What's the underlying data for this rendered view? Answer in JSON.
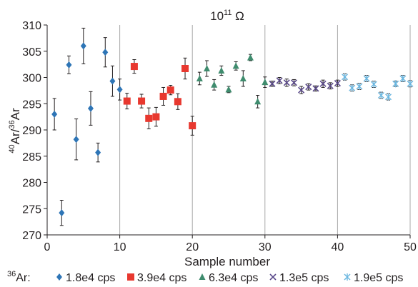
{
  "chart_data": {
    "type": "scatter",
    "title": {
      "sup": "11",
      "base": "10",
      "unit": " Ω"
    },
    "xlabel": "Sample number",
    "ylabel": {
      "sup1": "40",
      "mid": "Ar/",
      "sup2": "36",
      "tail": "Ar"
    },
    "xlim": [
      0,
      50
    ],
    "ylim": [
      270,
      310
    ],
    "xticks": [
      0,
      10,
      20,
      30,
      40,
      50
    ],
    "yticks": [
      270,
      275,
      280,
      285,
      290,
      295,
      300,
      305,
      310
    ],
    "grid": "vertical",
    "legend": {
      "prefix_sup": "36",
      "prefix_text": "Ar:",
      "placement": "bottom"
    },
    "series": [
      {
        "name": "1.8e4 cps",
        "marker": "diamond",
        "color": "#2e75b6",
        "points": [
          {
            "x": 1,
            "y": 293.0,
            "err": 3.0
          },
          {
            "x": 2,
            "y": 274.2,
            "err": 2.4
          },
          {
            "x": 3,
            "y": 302.4,
            "err": 1.7
          },
          {
            "x": 4,
            "y": 288.2,
            "err": 3.9
          },
          {
            "x": 5,
            "y": 306.0,
            "err": 3.4
          },
          {
            "x": 6,
            "y": 294.1,
            "err": 3.2
          },
          {
            "x": 7,
            "y": 285.7,
            "err": 1.8
          },
          {
            "x": 8,
            "y": 304.8,
            "err": 2.8
          },
          {
            "x": 9,
            "y": 299.3,
            "err": 2.9
          },
          {
            "x": 10,
            "y": 297.7,
            "err": 2.0
          }
        ]
      },
      {
        "name": "3.9e4 cps",
        "marker": "square",
        "color": "#e8382f",
        "points": [
          {
            "x": 11,
            "y": 295.5,
            "err": 1.5
          },
          {
            "x": 12,
            "y": 302.1,
            "err": 1.3
          },
          {
            "x": 13,
            "y": 295.5,
            "err": 1.3
          },
          {
            "x": 14,
            "y": 292.2,
            "err": 2.0
          },
          {
            "x": 15,
            "y": 292.5,
            "err": 1.8
          },
          {
            "x": 16,
            "y": 296.4,
            "err": 1.7
          },
          {
            "x": 17,
            "y": 297.6,
            "err": 0.9
          },
          {
            "x": 18,
            "y": 295.4,
            "err": 1.5
          },
          {
            "x": 19,
            "y": 301.7,
            "err": 2.0
          },
          {
            "x": 20,
            "y": 290.8,
            "err": 1.8
          }
        ]
      },
      {
        "name": "6.3e4 cps",
        "marker": "triangle",
        "color": "#3f8c6e",
        "points": [
          {
            "x": 21,
            "y": 299.8,
            "err": 1.2
          },
          {
            "x": 22,
            "y": 301.7,
            "err": 1.5
          },
          {
            "x": 23,
            "y": 298.6,
            "err": 1.0
          },
          {
            "x": 24,
            "y": 301.3,
            "err": 0.9
          },
          {
            "x": 25,
            "y": 297.7,
            "err": 0.6
          },
          {
            "x": 26,
            "y": 302.2,
            "err": 0.8
          },
          {
            "x": 27,
            "y": 299.8,
            "err": 1.5
          },
          {
            "x": 28,
            "y": 303.8,
            "err": 0.6
          },
          {
            "x": 29,
            "y": 295.4,
            "err": 1.2
          },
          {
            "x": 30,
            "y": 299.1,
            "err": 1.0
          }
        ]
      },
      {
        "name": "1.3e5 cps",
        "marker": "cross",
        "color": "#5b4a8b",
        "points": [
          {
            "x": 31,
            "y": 298.8,
            "err": 0.5
          },
          {
            "x": 32,
            "y": 299.4,
            "err": 0.6
          },
          {
            "x": 33,
            "y": 299.0,
            "err": 0.7
          },
          {
            "x": 34,
            "y": 299.0,
            "err": 0.6
          },
          {
            "x": 35,
            "y": 297.6,
            "err": 0.7
          },
          {
            "x": 36,
            "y": 298.2,
            "err": 0.6
          },
          {
            "x": 37,
            "y": 297.9,
            "err": 0.5
          },
          {
            "x": 38,
            "y": 298.8,
            "err": 0.7
          },
          {
            "x": 39,
            "y": 298.4,
            "err": 0.6
          },
          {
            "x": 40,
            "y": 298.9,
            "err": 0.6
          }
        ]
      },
      {
        "name": "1.9e5 cps",
        "marker": "asterisk",
        "color": "#6bb7e0",
        "points": [
          {
            "x": 41,
            "y": 300.1,
            "err": 0.6
          },
          {
            "x": 42,
            "y": 298.0,
            "err": 0.6
          },
          {
            "x": 43,
            "y": 298.3,
            "err": 0.6
          },
          {
            "x": 44,
            "y": 299.8,
            "err": 0.6
          },
          {
            "x": 45,
            "y": 298.7,
            "err": 0.6
          },
          {
            "x": 46,
            "y": 296.6,
            "err": 0.6
          },
          {
            "x": 47,
            "y": 296.3,
            "err": 0.6
          },
          {
            "x": 48,
            "y": 298.8,
            "err": 0.5
          },
          {
            "x": 49,
            "y": 299.8,
            "err": 0.6
          },
          {
            "x": 50,
            "y": 298.8,
            "err": 0.6
          }
        ]
      }
    ]
  }
}
